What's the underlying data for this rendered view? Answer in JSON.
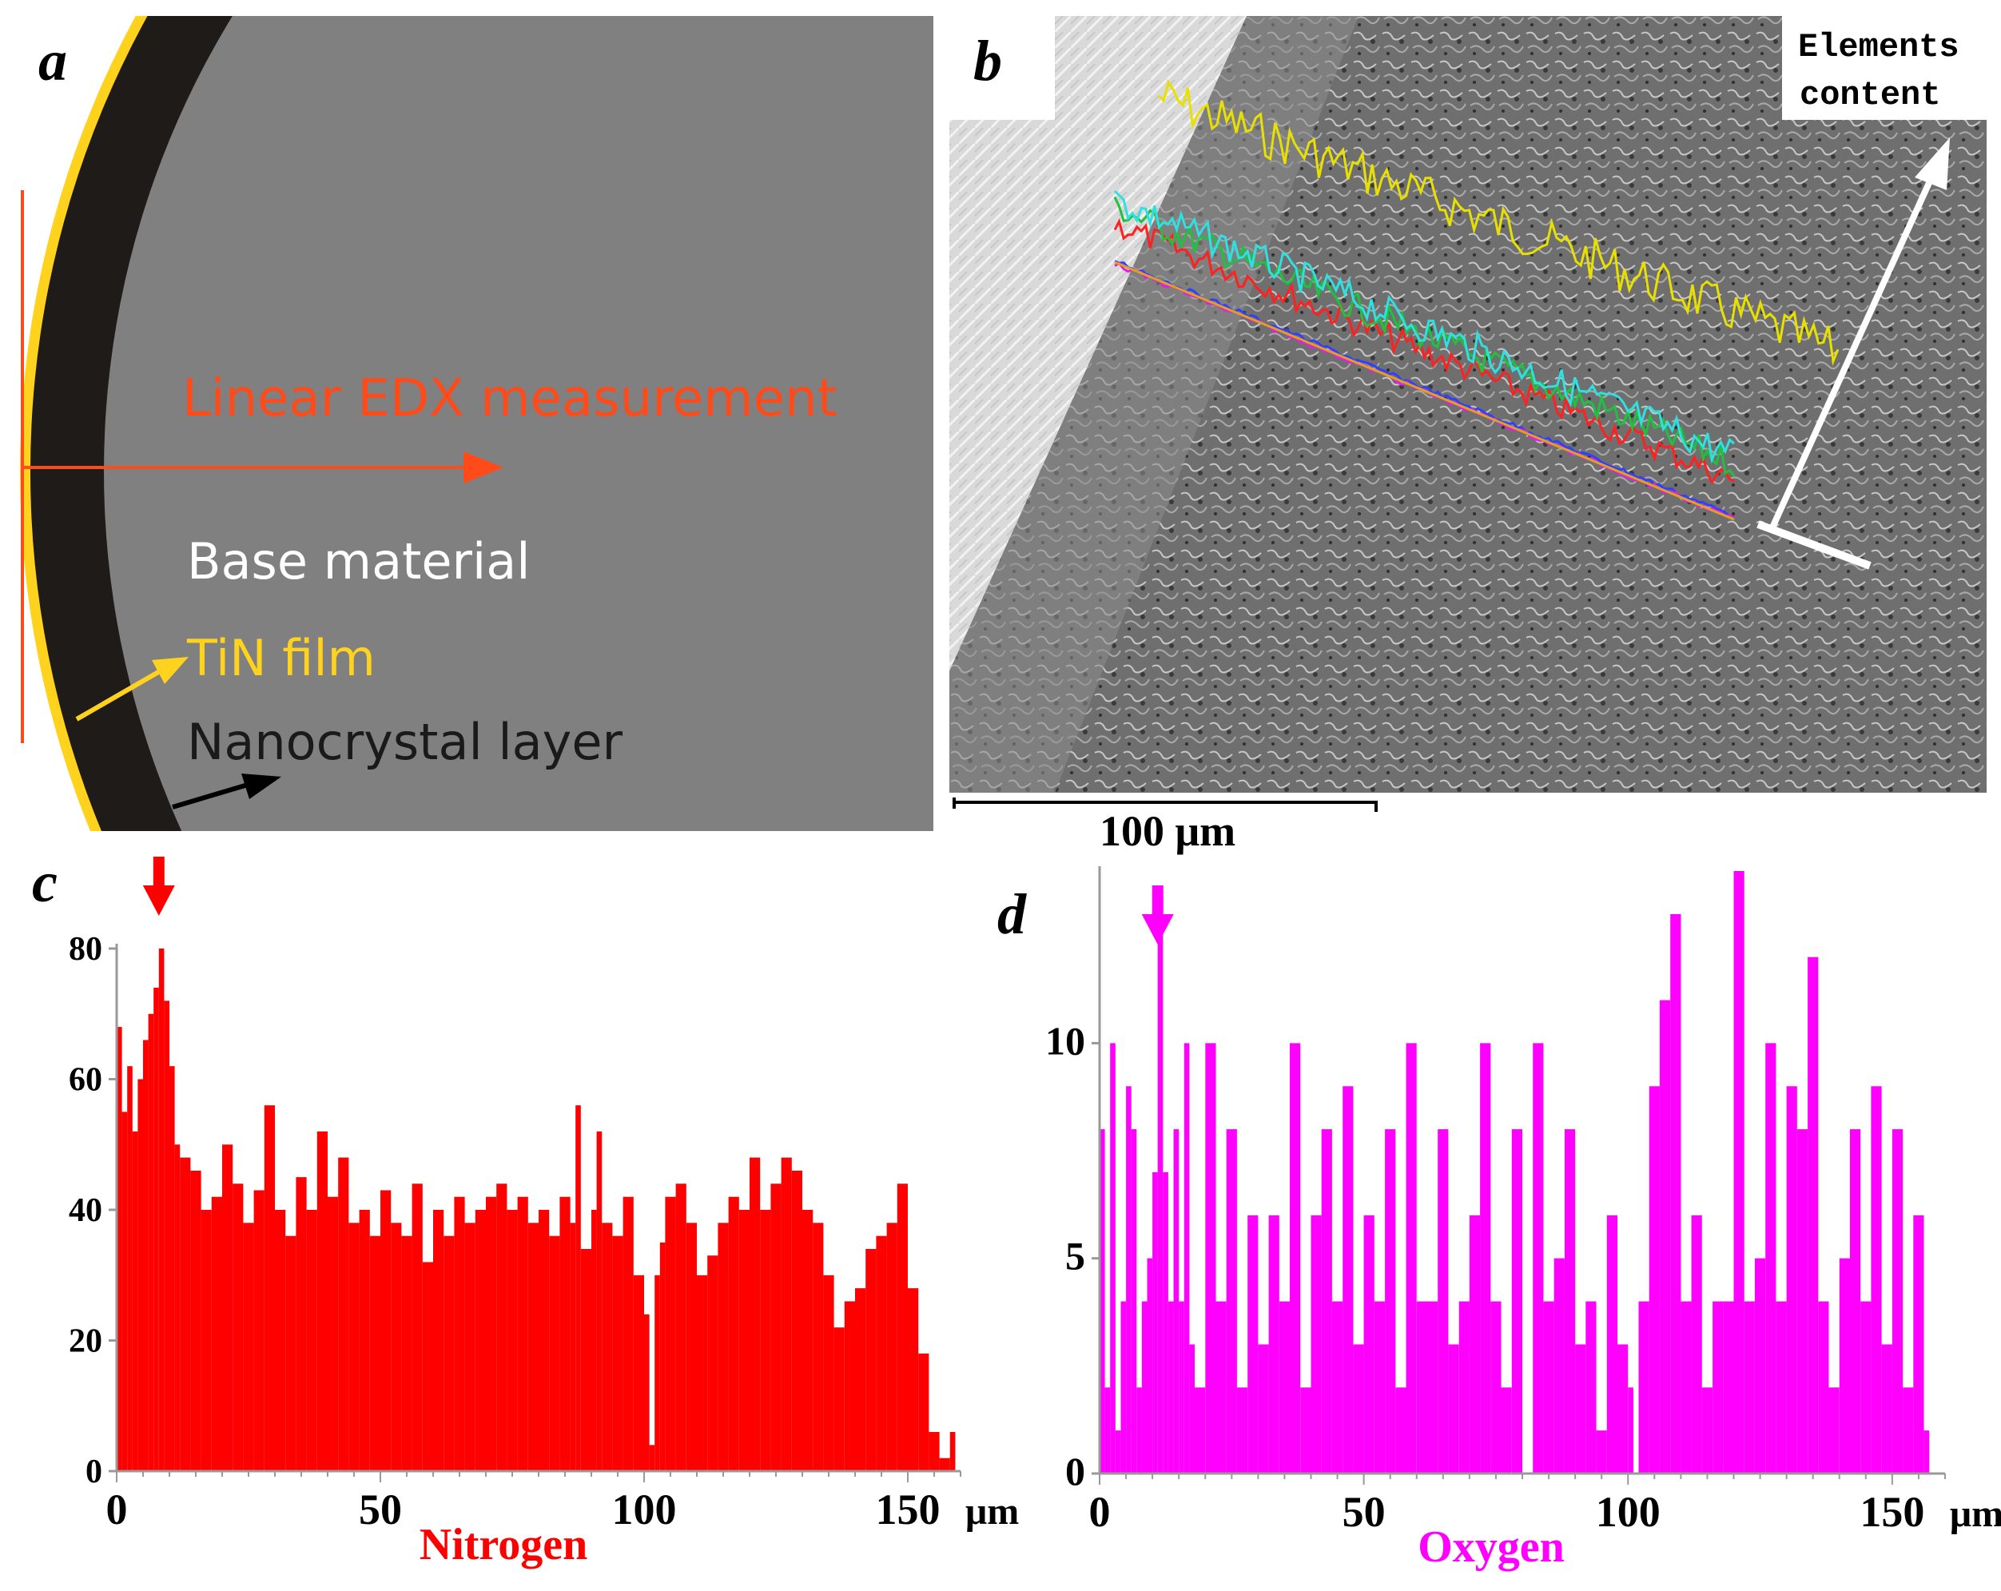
{
  "colors": {
    "nitrogen": "#ff0000",
    "oxygen": "#ff00ff",
    "tin_film": "#ffd21e",
    "nanocrystal": "#1f1b19",
    "base": "#808080",
    "edx_line": "#ff4a1a",
    "white": "#ffffff",
    "black": "#000000"
  },
  "panel_a": {
    "letter": "a",
    "edx_label": "Linear EDX measurement",
    "base_label": "Base material",
    "tin_label": "TiN film",
    "nano_label": "Nanocrystal layer"
  },
  "panel_b": {
    "letter": "b",
    "elements_label_line1": "Elements",
    "elements_label_line2": "content",
    "scale_label": "100 μm",
    "trace_names": [
      "yellow-trace",
      "red-trace",
      "green-trace",
      "cyan-trace",
      "blue-trace",
      "magenta-trace"
    ]
  },
  "chart_data": [
    {
      "type": "bar",
      "panel": "c",
      "element": "Nitrogen",
      "title": "Nitrogen",
      "x_unit": "μm",
      "xlim": [
        0,
        160
      ],
      "ylim": [
        0,
        80
      ],
      "xticks": [
        0,
        50,
        100,
        150
      ],
      "yticks": [
        0,
        20,
        40,
        60,
        80
      ],
      "peak_marker_x": 8,
      "samples": [
        {
          "x": 0,
          "v": 68
        },
        {
          "x": 1,
          "v": 55
        },
        {
          "x": 2,
          "v": 62
        },
        {
          "x": 3,
          "v": 52
        },
        {
          "x": 4,
          "v": 60
        },
        {
          "x": 5,
          "v": 66
        },
        {
          "x": 6,
          "v": 70
        },
        {
          "x": 7,
          "v": 74
        },
        {
          "x": 8,
          "v": 80
        },
        {
          "x": 9,
          "v": 72
        },
        {
          "x": 10,
          "v": 62
        },
        {
          "x": 11,
          "v": 50
        },
        {
          "x": 12,
          "v": 48
        },
        {
          "x": 14,
          "v": 46
        },
        {
          "x": 16,
          "v": 40
        },
        {
          "x": 18,
          "v": 42
        },
        {
          "x": 20,
          "v": 50
        },
        {
          "x": 22,
          "v": 44
        },
        {
          "x": 24,
          "v": 38
        },
        {
          "x": 26,
          "v": 43
        },
        {
          "x": 28,
          "v": 56
        },
        {
          "x": 30,
          "v": 40
        },
        {
          "x": 32,
          "v": 36
        },
        {
          "x": 34,
          "v": 45
        },
        {
          "x": 36,
          "v": 40
        },
        {
          "x": 38,
          "v": 52
        },
        {
          "x": 40,
          "v": 42
        },
        {
          "x": 42,
          "v": 48
        },
        {
          "x": 44,
          "v": 38
        },
        {
          "x": 46,
          "v": 40
        },
        {
          "x": 48,
          "v": 36
        },
        {
          "x": 50,
          "v": 43
        },
        {
          "x": 52,
          "v": 38
        },
        {
          "x": 54,
          "v": 36
        },
        {
          "x": 56,
          "v": 44
        },
        {
          "x": 58,
          "v": 32
        },
        {
          "x": 60,
          "v": 40
        },
        {
          "x": 62,
          "v": 36
        },
        {
          "x": 64,
          "v": 42
        },
        {
          "x": 66,
          "v": 38
        },
        {
          "x": 68,
          "v": 40
        },
        {
          "x": 70,
          "v": 42
        },
        {
          "x": 72,
          "v": 44
        },
        {
          "x": 74,
          "v": 40
        },
        {
          "x": 76,
          "v": 42
        },
        {
          "x": 78,
          "v": 38
        },
        {
          "x": 80,
          "v": 40
        },
        {
          "x": 82,
          "v": 36
        },
        {
          "x": 84,
          "v": 42
        },
        {
          "x": 86,
          "v": 38
        },
        {
          "x": 87,
          "v": 56
        },
        {
          "x": 88,
          "v": 34
        },
        {
          "x": 90,
          "v": 40
        },
        {
          "x": 91,
          "v": 52
        },
        {
          "x": 92,
          "v": 38
        },
        {
          "x": 94,
          "v": 36
        },
        {
          "x": 96,
          "v": 42
        },
        {
          "x": 98,
          "v": 30
        },
        {
          "x": 100,
          "v": 24
        },
        {
          "x": 101,
          "v": 4
        },
        {
          "x": 102,
          "v": 30
        },
        {
          "x": 103,
          "v": 35
        },
        {
          "x": 104,
          "v": 42
        },
        {
          "x": 106,
          "v": 44
        },
        {
          "x": 108,
          "v": 38
        },
        {
          "x": 110,
          "v": 30
        },
        {
          "x": 112,
          "v": 33
        },
        {
          "x": 114,
          "v": 38
        },
        {
          "x": 116,
          "v": 42
        },
        {
          "x": 118,
          "v": 40
        },
        {
          "x": 120,
          "v": 48
        },
        {
          "x": 122,
          "v": 40
        },
        {
          "x": 124,
          "v": 44
        },
        {
          "x": 126,
          "v": 48
        },
        {
          "x": 128,
          "v": 46
        },
        {
          "x": 130,
          "v": 40
        },
        {
          "x": 132,
          "v": 38
        },
        {
          "x": 134,
          "v": 30
        },
        {
          "x": 136,
          "v": 22
        },
        {
          "x": 138,
          "v": 26
        },
        {
          "x": 140,
          "v": 28
        },
        {
          "x": 142,
          "v": 34
        },
        {
          "x": 144,
          "v": 36
        },
        {
          "x": 146,
          "v": 38
        },
        {
          "x": 148,
          "v": 44
        },
        {
          "x": 150,
          "v": 28
        },
        {
          "x": 152,
          "v": 18
        },
        {
          "x": 154,
          "v": 6
        },
        {
          "x": 156,
          "v": 2
        },
        {
          "x": 158,
          "v": 6
        }
      ]
    },
    {
      "type": "bar",
      "panel": "d",
      "element": "Oxygen",
      "title": "Oxygen",
      "x_unit": "μm",
      "xlim": [
        0,
        160
      ],
      "ylim": [
        0,
        14
      ],
      "xticks": [
        0,
        50,
        100,
        150
      ],
      "yticks": [
        0,
        5,
        10
      ],
      "peak_marker_x": 11,
      "samples": [
        {
          "x": 0,
          "v": 8
        },
        {
          "x": 1,
          "v": 2
        },
        {
          "x": 2,
          "v": 10
        },
        {
          "x": 3,
          "v": 1
        },
        {
          "x": 4,
          "v": 4
        },
        {
          "x": 5,
          "v": 9
        },
        {
          "x": 6,
          "v": 8
        },
        {
          "x": 7,
          "v": 2
        },
        {
          "x": 8,
          "v": 4
        },
        {
          "x": 9,
          "v": 5
        },
        {
          "x": 10,
          "v": 7
        },
        {
          "x": 11,
          "v": 13
        },
        {
          "x": 12,
          "v": 7
        },
        {
          "x": 13,
          "v": 4
        },
        {
          "x": 14,
          "v": 8
        },
        {
          "x": 15,
          "v": 4
        },
        {
          "x": 16,
          "v": 10
        },
        {
          "x": 17,
          "v": 3
        },
        {
          "x": 18,
          "v": 2
        },
        {
          "x": 20,
          "v": 10
        },
        {
          "x": 22,
          "v": 4
        },
        {
          "x": 24,
          "v": 8
        },
        {
          "x": 26,
          "v": 2
        },
        {
          "x": 28,
          "v": 6
        },
        {
          "x": 30,
          "v": 3
        },
        {
          "x": 32,
          "v": 6
        },
        {
          "x": 34,
          "v": 4
        },
        {
          "x": 36,
          "v": 10
        },
        {
          "x": 38,
          "v": 2
        },
        {
          "x": 40,
          "v": 6
        },
        {
          "x": 42,
          "v": 8
        },
        {
          "x": 44,
          "v": 4
        },
        {
          "x": 46,
          "v": 9
        },
        {
          "x": 48,
          "v": 3
        },
        {
          "x": 50,
          "v": 6
        },
        {
          "x": 52,
          "v": 4
        },
        {
          "x": 54,
          "v": 8
        },
        {
          "x": 56,
          "v": 2
        },
        {
          "x": 58,
          "v": 10
        },
        {
          "x": 60,
          "v": 4
        },
        {
          "x": 62,
          "v": 4
        },
        {
          "x": 64,
          "v": 8
        },
        {
          "x": 66,
          "v": 3
        },
        {
          "x": 68,
          "v": 4
        },
        {
          "x": 70,
          "v": 6
        },
        {
          "x": 72,
          "v": 10
        },
        {
          "x": 74,
          "v": 4
        },
        {
          "x": 76,
          "v": 2
        },
        {
          "x": 78,
          "v": 8
        },
        {
          "x": 80,
          "v": 0
        },
        {
          "x": 82,
          "v": 10
        },
        {
          "x": 84,
          "v": 4
        },
        {
          "x": 86,
          "v": 5
        },
        {
          "x": 88,
          "v": 8
        },
        {
          "x": 90,
          "v": 3
        },
        {
          "x": 92,
          "v": 4
        },
        {
          "x": 94,
          "v": 1
        },
        {
          "x": 96,
          "v": 6
        },
        {
          "x": 98,
          "v": 3
        },
        {
          "x": 100,
          "v": 2
        },
        {
          "x": 101,
          "v": 0
        },
        {
          "x": 102,
          "v": 4
        },
        {
          "x": 104,
          "v": 9
        },
        {
          "x": 106,
          "v": 11
        },
        {
          "x": 108,
          "v": 13
        },
        {
          "x": 110,
          "v": 4
        },
        {
          "x": 112,
          "v": 6
        },
        {
          "x": 114,
          "v": 2
        },
        {
          "x": 116,
          "v": 4
        },
        {
          "x": 118,
          "v": 4
        },
        {
          "x": 120,
          "v": 14
        },
        {
          "x": 122,
          "v": 4
        },
        {
          "x": 124,
          "v": 5
        },
        {
          "x": 126,
          "v": 10
        },
        {
          "x": 128,
          "v": 4
        },
        {
          "x": 130,
          "v": 9
        },
        {
          "x": 132,
          "v": 8
        },
        {
          "x": 134,
          "v": 12
        },
        {
          "x": 136,
          "v": 4
        },
        {
          "x": 138,
          "v": 2
        },
        {
          "x": 140,
          "v": 5
        },
        {
          "x": 142,
          "v": 8
        },
        {
          "x": 144,
          "v": 4
        },
        {
          "x": 146,
          "v": 9
        },
        {
          "x": 148,
          "v": 3
        },
        {
          "x": 150,
          "v": 8
        },
        {
          "x": 152,
          "v": 2
        },
        {
          "x": 154,
          "v": 6
        },
        {
          "x": 156,
          "v": 1
        },
        {
          "x": 157,
          "v": 0
        }
      ]
    }
  ]
}
